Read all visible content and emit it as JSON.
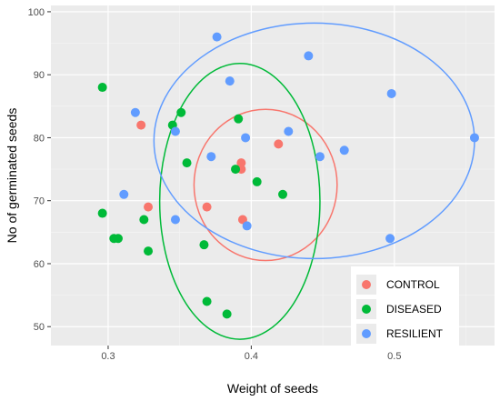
{
  "chart_data": {
    "type": "scatter",
    "xlabel": "Weight of seeds",
    "ylabel": "No of germinated seeds",
    "xlim": [
      0.26,
      0.57
    ],
    "ylim": [
      47,
      101
    ],
    "x_ticks": [
      0.3,
      0.4,
      0.5
    ],
    "x_tick_labels": [
      "0.3",
      "0.4",
      "0.5"
    ],
    "y_ticks": [
      50,
      60,
      70,
      80,
      90,
      100
    ],
    "y_tick_labels": [
      "50",
      "60",
      "70",
      "80",
      "90",
      "100"
    ],
    "grid": true,
    "legend_position": "bottom-right",
    "series": [
      {
        "name": "CONTROL",
        "color": "#F8766D",
        "points": [
          [
            0.323,
            82
          ],
          [
            0.328,
            69
          ],
          [
            0.369,
            69
          ],
          [
            0.393,
            76
          ],
          [
            0.393,
            75
          ],
          [
            0.394,
            67
          ],
          [
            0.419,
            79
          ]
        ],
        "ellipse": {
          "cx": 0.41,
          "cy": 72.5,
          "rx": 0.05,
          "ry": 12.0
        }
      },
      {
        "name": "DISEASED",
        "color": "#00BA38",
        "points": [
          [
            0.296,
            88
          ],
          [
            0.296,
            68
          ],
          [
            0.304,
            64
          ],
          [
            0.307,
            64
          ],
          [
            0.325,
            67
          ],
          [
            0.328,
            62
          ],
          [
            0.345,
            82
          ],
          [
            0.351,
            84
          ],
          [
            0.355,
            76
          ],
          [
            0.367,
            63
          ],
          [
            0.369,
            54
          ],
          [
            0.383,
            52
          ],
          [
            0.389,
            75
          ],
          [
            0.391,
            83
          ],
          [
            0.404,
            73
          ],
          [
            0.422,
            71
          ]
        ],
        "ellipse": {
          "cx": 0.392,
          "cy": 69.9,
          "rx": 0.056,
          "ry": 21.9
        }
      },
      {
        "name": "RESILIENT",
        "color": "#619CFF",
        "points": [
          [
            0.311,
            71
          ],
          [
            0.319,
            84
          ],
          [
            0.347,
            81
          ],
          [
            0.347,
            67
          ],
          [
            0.372,
            77
          ],
          [
            0.376,
            96
          ],
          [
            0.385,
            89
          ],
          [
            0.396,
            80
          ],
          [
            0.397,
            66
          ],
          [
            0.426,
            81
          ],
          [
            0.44,
            93
          ],
          [
            0.448,
            77
          ],
          [
            0.465,
            78
          ],
          [
            0.497,
            64
          ],
          [
            0.498,
            87
          ],
          [
            0.556,
            80
          ]
        ],
        "ellipse": {
          "cx": 0.444,
          "cy": 79.5,
          "rx": 0.112,
          "ry": 18.7
        }
      }
    ]
  }
}
